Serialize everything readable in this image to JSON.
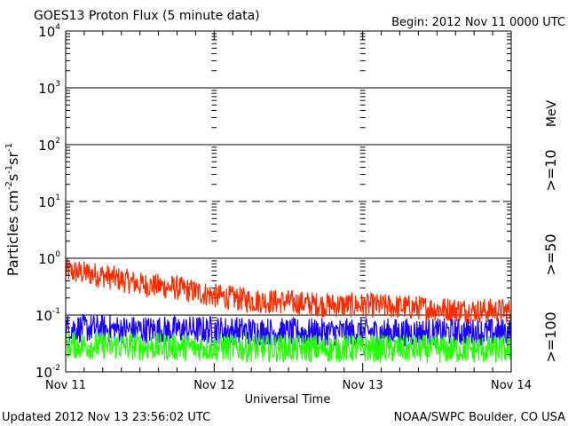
{
  "chart_data": {
    "type": "line",
    "title": "GOES13 Proton Flux (5 minute data)",
    "begin_label": "Begin: 2012 Nov 11 0000 UTC",
    "xlabel": "Universal Time",
    "ylabel_main": "Particles cm",
    "ylabel_exp1": "-2",
    "ylabel_s": "s",
    "ylabel_exp2": "-1",
    "ylabel_sr": "sr",
    "ylabel_exp3": "-1",
    "yscale": "log",
    "ylim": [
      0.01,
      10000
    ],
    "xlim_days": [
      0,
      3
    ],
    "x_ticks": [
      {
        "day": 0,
        "label": "Nov 11"
      },
      {
        "day": 1,
        "label": "Nov 12"
      },
      {
        "day": 2,
        "label": "Nov 13"
      },
      {
        "day": 3,
        "label": "Nov 14"
      }
    ],
    "y_ticks": [
      {
        "exp": -2,
        "base": "10",
        "sup": "-2"
      },
      {
        "exp": -1,
        "base": "10",
        "sup": "-1"
      },
      {
        "exp": 0,
        "base": "10",
        "sup": "0"
      },
      {
        "exp": 1,
        "base": "10",
        "sup": "1"
      },
      {
        "exp": 2,
        "base": "10",
        "sup": "2"
      },
      {
        "exp": 3,
        "base": "10",
        "sup": "3"
      },
      {
        "exp": 4,
        "base": "10",
        "sup": "4"
      }
    ],
    "thresholds": [
      {
        "value": 10,
        "style": "dashed"
      },
      {
        "value": 100,
        "style": "solid"
      },
      {
        "value": 1000,
        "style": "solid"
      },
      {
        "value": 1,
        "style": "solid"
      },
      {
        "value": 0.1,
        "style": "solid"
      }
    ],
    "unit_label": "MeV",
    "series": [
      {
        "name": ">=10",
        "color": "#ff2a00",
        "day": [
          0,
          0.25,
          0.5,
          0.75,
          1.0,
          1.25,
          1.5,
          1.75,
          2.0,
          2.25,
          2.5,
          2.75,
          3.0
        ],
        "values": [
          0.6,
          0.5,
          0.35,
          0.3,
          0.22,
          0.18,
          0.17,
          0.15,
          0.15,
          0.14,
          0.13,
          0.12,
          0.12
        ]
      },
      {
        "name": ">=50",
        "color": "#1a00ff",
        "day": [
          0,
          0.5,
          1.0,
          1.5,
          2.0,
          2.5,
          3.0
        ],
        "values": [
          0.06,
          0.055,
          0.055,
          0.05,
          0.05,
          0.05,
          0.05
        ]
      },
      {
        "name": ">=100",
        "color": "#22ff00",
        "day": [
          0,
          0.5,
          1.0,
          1.5,
          2.0,
          2.5,
          3.0
        ],
        "values": [
          0.03,
          0.028,
          0.027,
          0.026,
          0.026,
          0.025,
          0.025
        ]
      }
    ],
    "footer_left": "Updated 2012 Nov 13 23:56:02 UTC",
    "footer_right": "NOAA/SWPC Boulder, CO USA"
  }
}
